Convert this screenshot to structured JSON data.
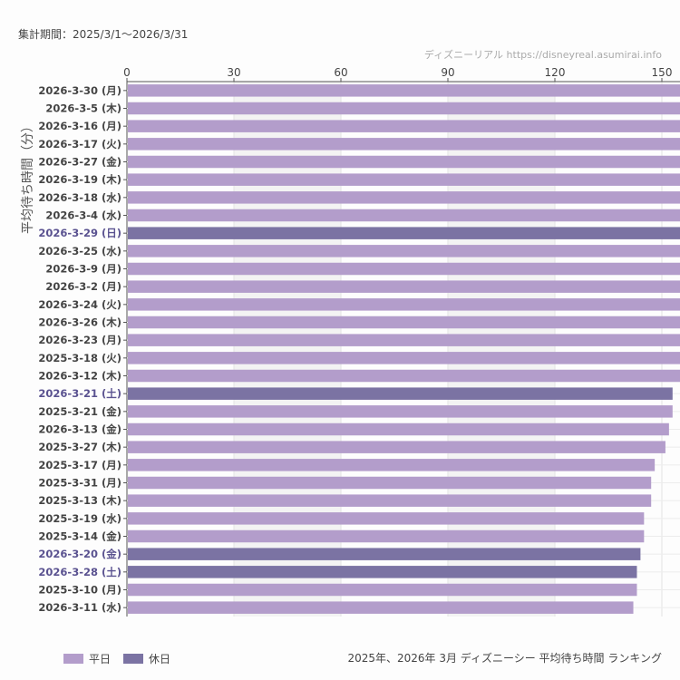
{
  "header": {
    "period": "集計期間：2025/3/1〜2026/3/31",
    "credit": "ディズニーリアル https://disneyreal.asumirai.info"
  },
  "legend": [
    {
      "label": "平日",
      "color": "#b39dcb"
    },
    {
      "label": "休日",
      "color": "#7b73a3"
    }
  ],
  "caption": "2025年、2026年 3月 ディズニーシー 平均待ち時間 ランキング",
  "chart_data": {
    "type": "bar",
    "orientation": "horizontal",
    "ylabel": "平均待ち時間（分）",
    "xlim": [
      0,
      155
    ],
    "xticks": [
      0,
      30,
      60,
      90,
      120,
      150
    ],
    "grid": true,
    "legend_placement": "bottom-left",
    "categories": [
      "2026-3-30 (月)",
      "2026-3-5 (木)",
      "2026-3-16 (月)",
      "2026-3-17 (火)",
      "2026-3-27 (金)",
      "2026-3-19 (木)",
      "2026-3-18 (水)",
      "2026-3-4 (水)",
      "2026-3-29 (日)",
      "2026-3-25 (水)",
      "2026-3-9 (月)",
      "2026-3-2 (月)",
      "2026-3-24 (火)",
      "2026-3-26 (木)",
      "2026-3-23 (月)",
      "2025-3-18 (火)",
      "2026-3-12 (木)",
      "2026-3-21 (土)",
      "2025-3-21 (金)",
      "2026-3-13 (金)",
      "2025-3-27 (木)",
      "2025-3-17 (月)",
      "2025-3-31 (月)",
      "2025-3-13 (木)",
      "2025-3-19 (水)",
      "2025-3-14 (金)",
      "2026-3-20 (金)",
      "2026-3-28 (土)",
      "2025-3-10 (月)",
      "2026-3-11 (水)"
    ],
    "values": [
      156,
      156,
      156,
      156,
      156,
      156,
      156,
      156,
      156,
      156,
      156,
      156,
      156,
      156,
      156,
      156,
      156,
      153,
      153,
      152,
      151,
      148,
      147,
      147,
      145,
      145,
      144,
      143,
      143,
      142
    ],
    "holiday": [
      false,
      false,
      false,
      false,
      false,
      false,
      false,
      false,
      true,
      false,
      false,
      false,
      false,
      false,
      false,
      false,
      false,
      true,
      false,
      false,
      false,
      false,
      false,
      false,
      false,
      false,
      true,
      true,
      false,
      false
    ]
  }
}
